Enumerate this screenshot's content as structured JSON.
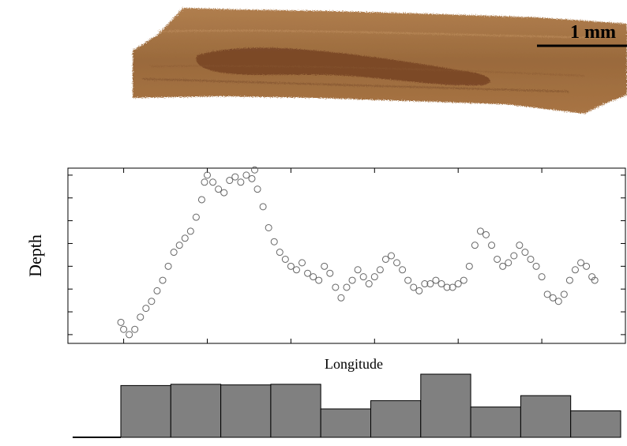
{
  "specimen": {
    "scale_bar_label": "1 mm",
    "colors": {
      "base": "#9a6a3c",
      "light": "#b98a5a",
      "dark": "#6e3a20",
      "grain": "#7a4c2a"
    }
  },
  "chart_data": [
    {
      "type": "scatter",
      "title": "",
      "xlabel": "Longitude",
      "ylabel": "Depth",
      "xlim": [
        0,
        100
      ],
      "ylim": [
        0,
        100
      ],
      "x_ticks": [
        10,
        25,
        40,
        55,
        70,
        85
      ],
      "y_ticks": [
        5,
        18,
        31,
        44,
        57,
        70,
        83,
        96
      ],
      "show_tick_labels": false,
      "grid": false,
      "marker": "open-circle",
      "marker_color": "#666666",
      "series": [
        {
          "x": [
            9.5,
            10,
            11,
            12,
            13,
            14,
            15,
            16,
            17,
            18,
            19,
            20,
            21,
            22,
            23,
            24,
            24.5,
            25,
            26,
            27,
            28,
            29,
            30,
            31,
            32,
            33,
            33.5,
            34,
            35,
            36,
            37,
            38,
            39,
            40,
            41,
            42,
            43,
            44,
            45,
            46,
            47,
            48,
            49,
            50,
            51,
            52,
            53,
            54,
            55,
            56,
            57,
            58,
            59,
            60,
            61,
            62,
            63,
            64,
            65,
            66,
            67,
            68,
            69,
            70,
            71,
            72,
            73,
            74,
            75,
            76,
            77,
            78,
            79,
            80,
            81,
            82,
            83,
            84,
            85,
            86,
            87,
            88,
            89,
            90,
            91,
            92,
            93,
            94,
            94.5
          ],
          "y": [
            12,
            8,
            5,
            8,
            15,
            20,
            24,
            30,
            36,
            44,
            52,
            56,
            60,
            64,
            72,
            82,
            92,
            96,
            92,
            88,
            86,
            93,
            95,
            92,
            96,
            94,
            99,
            88,
            78,
            66,
            58,
            52,
            48,
            44,
            42,
            46,
            40,
            38,
            36,
            44,
            40,
            32,
            26,
            32,
            36,
            42,
            38,
            34,
            38,
            42,
            48,
            50,
            46,
            42,
            36,
            32,
            30,
            34,
            34,
            36,
            34,
            32,
            32,
            34,
            36,
            44,
            56,
            64,
            62,
            56,
            48,
            44,
            46,
            50,
            56,
            52,
            48,
            44,
            38,
            28,
            26,
            24,
            28,
            36,
            42,
            46,
            44,
            38,
            36
          ]
        }
      ]
    },
    {
      "type": "bar",
      "title": "",
      "xlabel": "",
      "ylabel": "",
      "ylim": [
        0,
        100
      ],
      "baseline_value": 0,
      "show_tick_labels": false,
      "bar_color": "#808080",
      "bar_edge": "#000000",
      "values": [
        82,
        84,
        83,
        84,
        45,
        58,
        100,
        48,
        66,
        42
      ]
    }
  ]
}
